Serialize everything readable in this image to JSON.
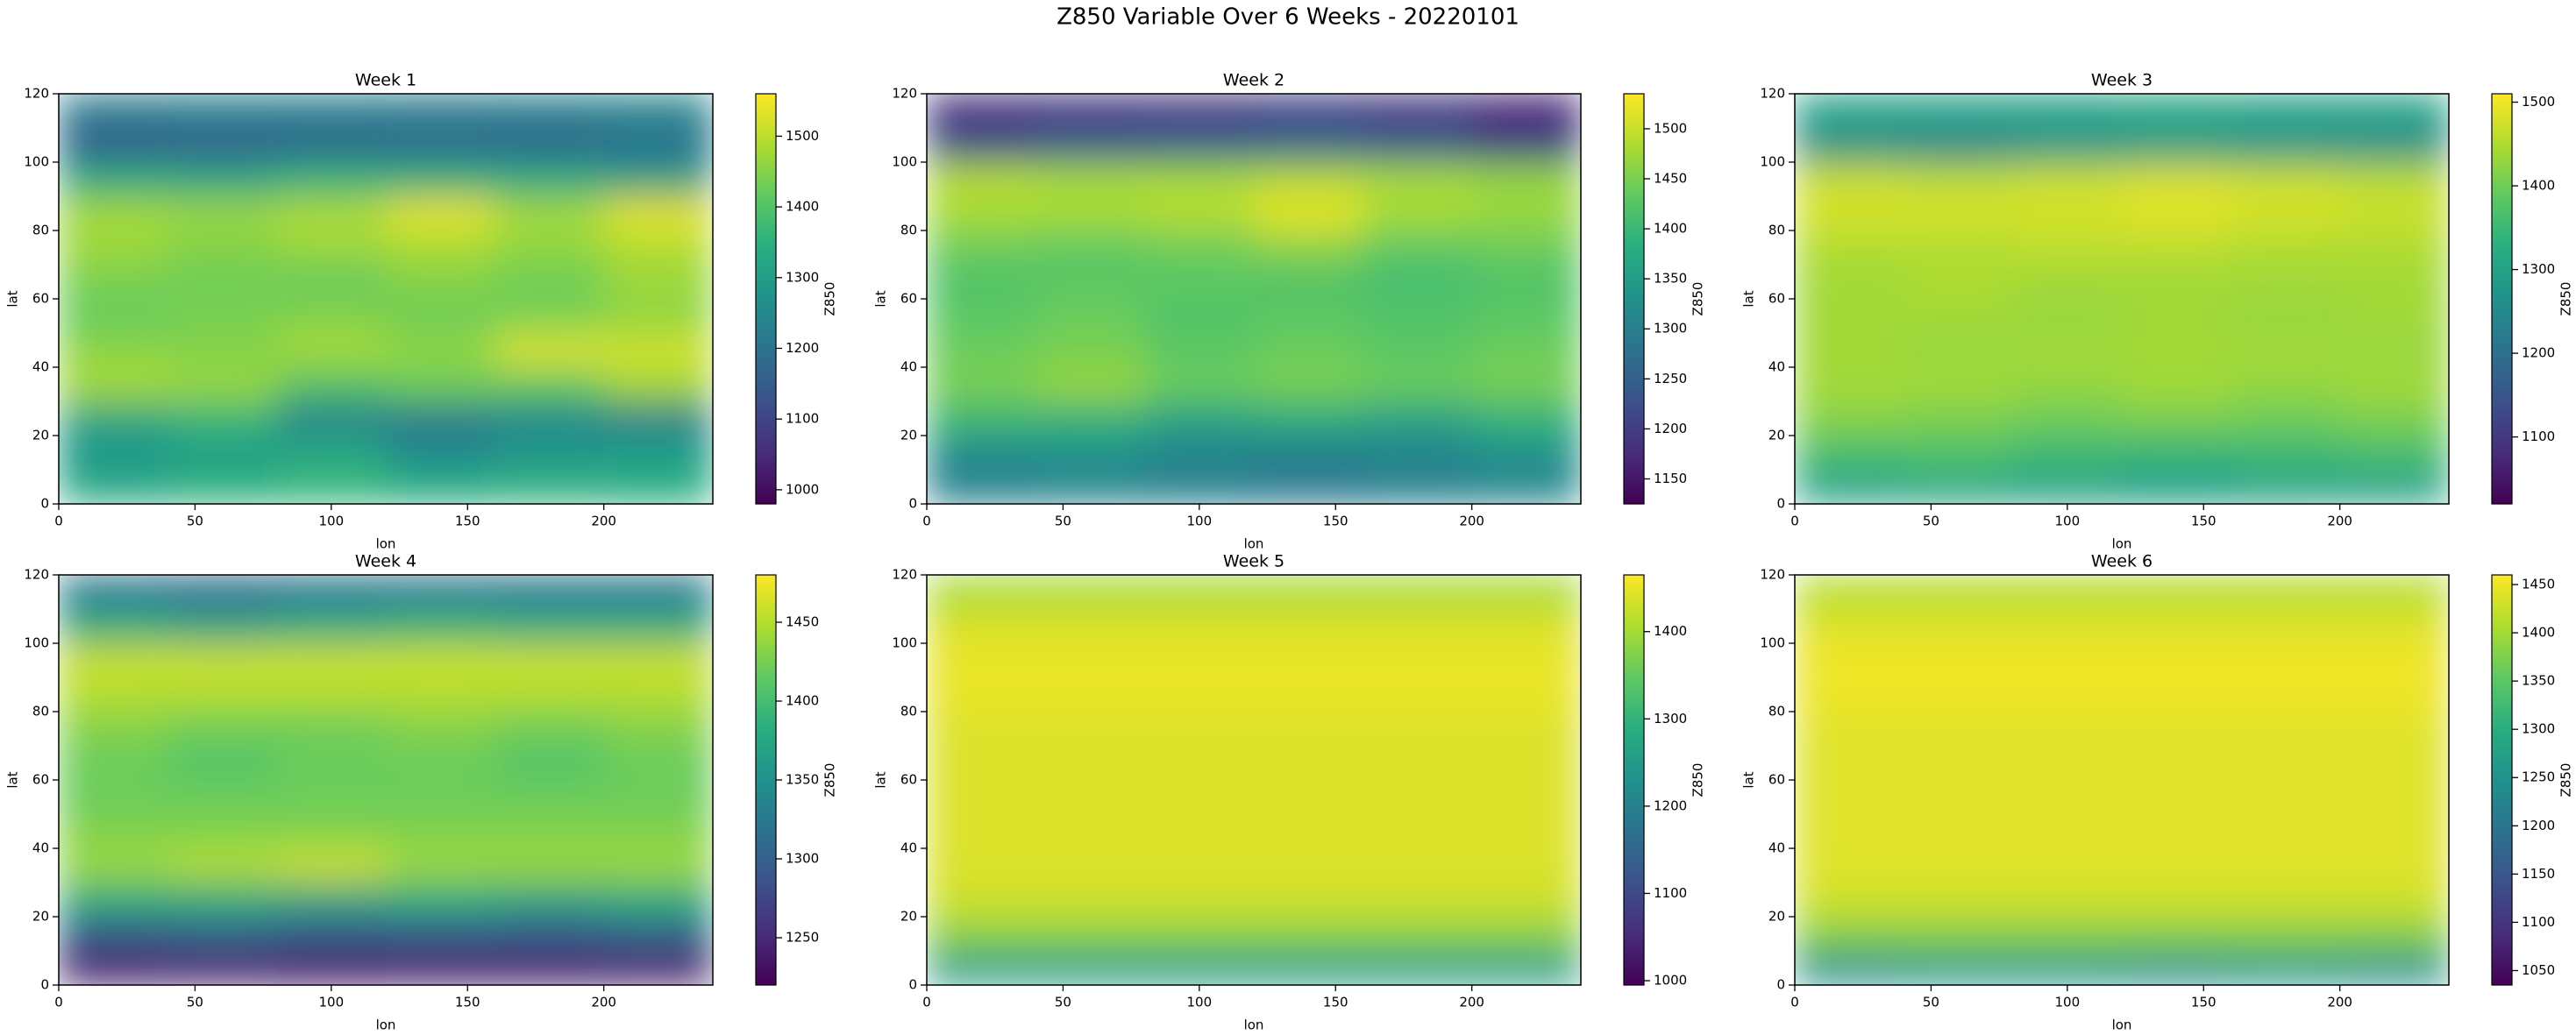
{
  "title": "Z850 Variable Over 6 Weeks - 20220101",
  "chart_data": [
    {
      "type": "heatmap",
      "title": "Week 1",
      "x_label": "lon",
      "y_label": "lat",
      "colorbar_label": "Z850",
      "colormap": "viridis",
      "xlim": [
        0,
        240
      ],
      "ylim": [
        0,
        120
      ],
      "xticks": [
        0,
        50,
        100,
        150,
        200
      ],
      "yticks": [
        0,
        20,
        40,
        60,
        80,
        100,
        120
      ],
      "xbins": [
        0,
        40,
        80,
        120,
        160,
        200,
        240
      ],
      "ybins": [
        0,
        10,
        20,
        30,
        40,
        50,
        60,
        70,
        80,
        90,
        100,
        110,
        120
      ],
      "clim": [
        980,
        1560
      ],
      "cticks": [
        1000,
        1100,
        1200,
        1300,
        1400,
        1500
      ],
      "z": [
        [
          1330,
          1350,
          1360,
          1340,
          1350,
          1340
        ],
        [
          1280,
          1300,
          1330,
          1250,
          1280,
          1300
        ],
        [
          1320,
          1360,
          1230,
          1220,
          1250,
          1230
        ],
        [
          1480,
          1470,
          1400,
          1430,
          1420,
          1480
        ],
        [
          1460,
          1450,
          1480,
          1460,
          1530,
          1520
        ],
        [
          1420,
          1440,
          1450,
          1430,
          1440,
          1460
        ],
        [
          1440,
          1430,
          1420,
          1450,
          1430,
          1470
        ],
        [
          1470,
          1450,
          1470,
          1480,
          1460,
          1490
        ],
        [
          1480,
          1470,
          1490,
          1540,
          1480,
          1540
        ],
        [
          1330,
          1320,
          1350,
          1340,
          1330,
          1300
        ],
        [
          1150,
          1160,
          1170,
          1180,
          1170,
          1190
        ],
        [
          1220,
          1230,
          1230,
          1220,
          1230,
          1240
        ]
      ]
    },
    {
      "type": "heatmap",
      "title": "Week 2",
      "x_label": "lon",
      "y_label": "lat",
      "colorbar_label": "Z850",
      "colormap": "viridis",
      "xlim": [
        0,
        240
      ],
      "ylim": [
        0,
        120
      ],
      "xticks": [
        0,
        50,
        100,
        150,
        200
      ],
      "yticks": [
        0,
        20,
        40,
        60,
        80,
        100,
        120
      ],
      "xbins": [
        0,
        40,
        80,
        120,
        160,
        200,
        240
      ],
      "ybins": [
        0,
        10,
        20,
        30,
        40,
        50,
        60,
        70,
        80,
        90,
        100,
        110,
        120
      ],
      "clim": [
        1125,
        1535
      ],
      "cticks": [
        1150,
        1200,
        1250,
        1300,
        1350,
        1400,
        1450,
        1500
      ],
      "z": [
        [
          1300,
          1310,
          1300,
          1290,
          1300,
          1310
        ],
        [
          1320,
          1330,
          1310,
          1300,
          1310,
          1330
        ],
        [
          1400,
          1390,
          1360,
          1380,
          1360,
          1390
        ],
        [
          1450,
          1470,
          1440,
          1450,
          1440,
          1450
        ],
        [
          1440,
          1450,
          1430,
          1440,
          1430,
          1440
        ],
        [
          1430,
          1440,
          1420,
          1430,
          1420,
          1430
        ],
        [
          1420,
          1430,
          1430,
          1420,
          1410,
          1420
        ],
        [
          1440,
          1430,
          1440,
          1460,
          1430,
          1440
        ],
        [
          1480,
          1480,
          1490,
          1520,
          1480,
          1470
        ],
        [
          1490,
          1480,
          1480,
          1490,
          1480,
          1470
        ],
        [
          1220,
          1240,
          1250,
          1260,
          1240,
          1200
        ],
        [
          1180,
          1190,
          1190,
          1200,
          1190,
          1170
        ]
      ]
    },
    {
      "type": "heatmap",
      "title": "Week 3",
      "x_label": "lon",
      "y_label": "lat",
      "colorbar_label": "Z850",
      "colormap": "viridis",
      "xlim": [
        0,
        240
      ],
      "ylim": [
        0,
        120
      ],
      "xticks": [
        0,
        50,
        100,
        150,
        200
      ],
      "yticks": [
        0,
        20,
        40,
        60,
        80,
        100,
        120
      ],
      "xbins": [
        0,
        40,
        80,
        120,
        160,
        200,
        240
      ],
      "ybins": [
        0,
        10,
        20,
        30,
        40,
        50,
        60,
        70,
        80,
        90,
        100,
        110,
        120
      ],
      "clim": [
        1020,
        1510
      ],
      "cticks": [
        1100,
        1200,
        1300,
        1400,
        1500
      ],
      "z": [
        [
          1300,
          1310,
          1300,
          1290,
          1300,
          1300
        ],
        [
          1360,
          1370,
          1350,
          1340,
          1350,
          1360
        ],
        [
          1420,
          1410,
          1400,
          1410,
          1400,
          1410
        ],
        [
          1440,
          1440,
          1430,
          1440,
          1430,
          1440
        ],
        [
          1440,
          1430,
          1440,
          1440,
          1440,
          1430
        ],
        [
          1440,
          1440,
          1430,
          1440,
          1430,
          1440
        ],
        [
          1440,
          1450,
          1440,
          1440,
          1440,
          1440
        ],
        [
          1450,
          1450,
          1460,
          1460,
          1450,
          1450
        ],
        [
          1480,
          1480,
          1480,
          1490,
          1480,
          1470
        ],
        [
          1470,
          1460,
          1470,
          1480,
          1470,
          1460
        ],
        [
          1260,
          1240,
          1270,
          1280,
          1270,
          1260
        ],
        [
          1300,
          1300,
          1300,
          1310,
          1300,
          1300
        ]
      ]
    },
    {
      "type": "heatmap",
      "title": "Week 4",
      "x_label": "lon",
      "y_label": "lat",
      "colorbar_label": "Z850",
      "colormap": "viridis",
      "xlim": [
        0,
        240
      ],
      "ylim": [
        0,
        120
      ],
      "xticks": [
        0,
        50,
        100,
        150,
        200
      ],
      "yticks": [
        0,
        20,
        40,
        60,
        80,
        100,
        120
      ],
      "xbins": [
        0,
        40,
        80,
        120,
        160,
        200,
        240
      ],
      "ybins": [
        0,
        10,
        20,
        30,
        40,
        50,
        60,
        70,
        80,
        90,
        100,
        110,
        120
      ],
      "clim": [
        1220,
        1480
      ],
      "cticks": [
        1250,
        1300,
        1350,
        1400,
        1450
      ],
      "z": [
        [
          1240,
          1240,
          1235,
          1240,
          1240,
          1240
        ],
        [
          1290,
          1300,
          1290,
          1290,
          1290,
          1300
        ],
        [
          1380,
          1380,
          1370,
          1380,
          1370,
          1380
        ],
        [
          1440,
          1450,
          1460,
          1440,
          1440,
          1440
        ],
        [
          1430,
          1430,
          1430,
          1430,
          1430,
          1430
        ],
        [
          1420,
          1420,
          1420,
          1420,
          1420,
          1420
        ],
        [
          1420,
          1410,
          1420,
          1420,
          1410,
          1420
        ],
        [
          1430,
          1420,
          1420,
          1430,
          1420,
          1430
        ],
        [
          1450,
          1450,
          1450,
          1450,
          1450,
          1450
        ],
        [
          1460,
          1460,
          1460,
          1460,
          1460,
          1460
        ],
        [
          1380,
          1370,
          1380,
          1390,
          1380,
          1380
        ],
        [
          1320,
          1310,
          1320,
          1320,
          1320,
          1320
        ]
      ]
    },
    {
      "type": "heatmap",
      "title": "Week 5",
      "x_label": "lon",
      "y_label": "lat",
      "colorbar_label": "Z850",
      "colormap": "viridis",
      "xlim": [
        0,
        240
      ],
      "ylim": [
        0,
        120
      ],
      "xticks": [
        0,
        50,
        100,
        150,
        200
      ],
      "yticks": [
        0,
        20,
        40,
        60,
        80,
        100,
        120
      ],
      "xbins": [
        0,
        40,
        80,
        120,
        160,
        200,
        240
      ],
      "ybins": [
        0,
        10,
        20,
        30,
        40,
        50,
        60,
        70,
        80,
        90,
        100,
        110,
        120
      ],
      "clim": [
        995,
        1465
      ],
      "cticks": [
        1000,
        1100,
        1200,
        1300,
        1400
      ],
      "z": [
        [
          1250,
          1250,
          1250,
          1250,
          1250,
          1250
        ],
        [
          1380,
          1380,
          1380,
          1380,
          1380,
          1380
        ],
        [
          1430,
          1430,
          1430,
          1430,
          1430,
          1430
        ],
        [
          1440,
          1440,
          1440,
          1440,
          1440,
          1440
        ],
        [
          1440,
          1440,
          1440,
          1440,
          1440,
          1440
        ],
        [
          1440,
          1440,
          1440,
          1440,
          1440,
          1440
        ],
        [
          1440,
          1440,
          1440,
          1440,
          1440,
          1440
        ],
        [
          1440,
          1440,
          1440,
          1440,
          1440,
          1440
        ],
        [
          1450,
          1450,
          1450,
          1450,
          1450,
          1450
        ],
        [
          1450,
          1450,
          1450,
          1450,
          1450,
          1450
        ],
        [
          1440,
          1440,
          1440,
          1440,
          1440,
          1440
        ],
        [
          1400,
          1400,
          1400,
          1400,
          1400,
          1400
        ]
      ]
    },
    {
      "type": "heatmap",
      "title": "Week 6",
      "x_label": "lon",
      "y_label": "lat",
      "colorbar_label": "Z850",
      "colormap": "viridis",
      "xlim": [
        0,
        240
      ],
      "ylim": [
        0,
        120
      ],
      "xticks": [
        0,
        50,
        100,
        150,
        200
      ],
      "yticks": [
        0,
        20,
        40,
        60,
        80,
        100,
        120
      ],
      "xbins": [
        0,
        40,
        80,
        120,
        160,
        200,
        240
      ],
      "ybins": [
        0,
        10,
        20,
        30,
        40,
        50,
        60,
        70,
        80,
        90,
        100,
        110,
        120
      ],
      "clim": [
        1035,
        1460
      ],
      "cticks": [
        1050,
        1100,
        1150,
        1200,
        1250,
        1300,
        1350,
        1400,
        1450
      ],
      "z": [
        [
          1250,
          1260,
          1260,
          1250,
          1260,
          1250
        ],
        [
          1380,
          1380,
          1380,
          1380,
          1380,
          1380
        ],
        [
          1430,
          1430,
          1430,
          1430,
          1430,
          1430
        ],
        [
          1440,
          1440,
          1440,
          1440,
          1440,
          1440
        ],
        [
          1440,
          1440,
          1440,
          1440,
          1440,
          1440
        ],
        [
          1440,
          1440,
          1440,
          1440,
          1440,
          1440
        ],
        [
          1440,
          1440,
          1440,
          1440,
          1440,
          1440
        ],
        [
          1440,
          1440,
          1440,
          1440,
          1440,
          1440
        ],
        [
          1450,
          1450,
          1450,
          1450,
          1450,
          1450
        ],
        [
          1450,
          1450,
          1450,
          1450,
          1450,
          1450
        ],
        [
          1440,
          1440,
          1440,
          1440,
          1440,
          1440
        ],
        [
          1410,
          1410,
          1410,
          1410,
          1410,
          1410
        ]
      ]
    }
  ]
}
